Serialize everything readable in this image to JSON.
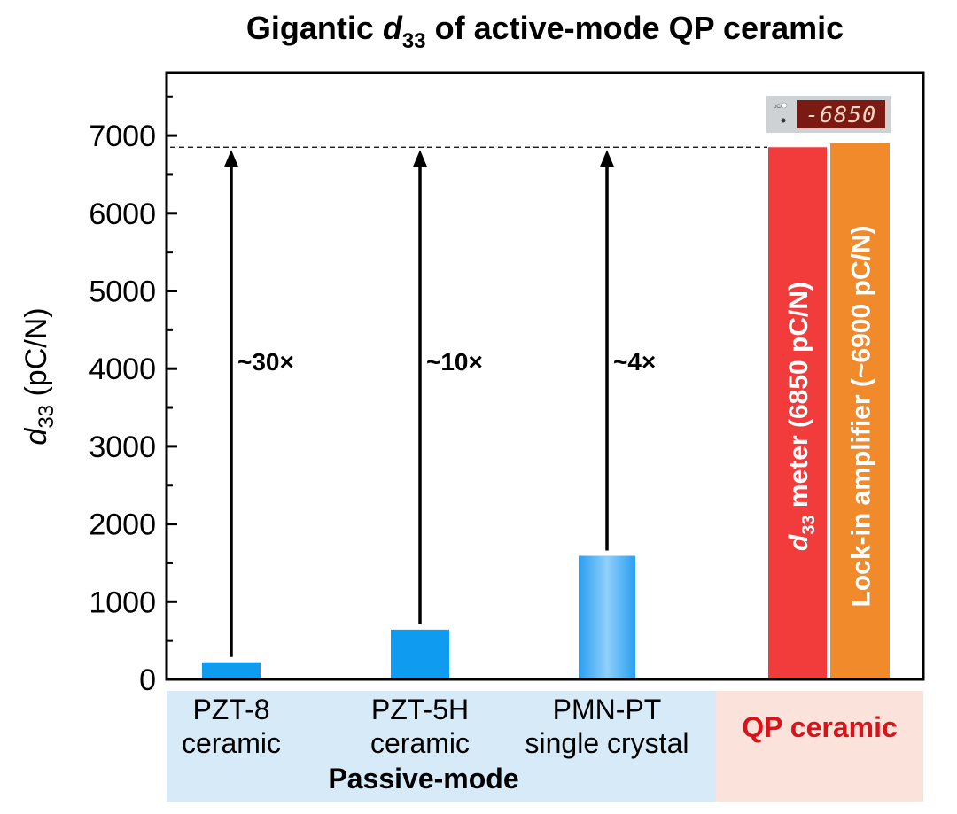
{
  "chart_data": {
    "type": "bar",
    "title": "Gigantic d33 of active-mode QP ceramic",
    "title_parts": {
      "pre": "Gigantic ",
      "italic": "d",
      "sub": "33",
      "post": " of active-mode QP ceramic"
    },
    "ylabel": "d33 (pC/N)",
    "ylabel_parts": {
      "italic": "d",
      "sub": "33",
      "post": " (pC/N)"
    },
    "ylim": [
      0,
      7800
    ],
    "yticks": [
      0,
      1000,
      2000,
      3000,
      4000,
      5000,
      6000,
      7000
    ],
    "yticks_labels": [
      "0",
      "1000",
      "2000",
      "3000",
      "4000",
      "5000",
      "6000",
      "7000"
    ],
    "reference_line": {
      "value": 6850,
      "style": "dashed"
    },
    "groups": [
      {
        "name": "Passive-mode",
        "color": "#d6ebf7"
      },
      {
        "name": "QP ceramic",
        "color": "#fbe3dc",
        "text_color": "#d7141a"
      }
    ],
    "categories": [
      {
        "line1": "PZT-8",
        "line2": "ceramic",
        "value": 220,
        "ratio_label": "~30×",
        "color": "#0f9cf0",
        "group": "Passive-mode"
      },
      {
        "line1": "PZT-5H",
        "line2": "ceramic",
        "value": 640,
        "ratio_label": "~10×",
        "color": "#0f9cf0",
        "group": "Passive-mode"
      },
      {
        "line1": "PMN-PT",
        "line2": "single crystal",
        "value": 1590,
        "ratio_label": "~4×",
        "color": "#3aa6f2",
        "group": "Passive-mode"
      }
    ],
    "active_bars": [
      {
        "label_italic": "d",
        "label_sub": "33",
        "label_post": " meter (6850 pC/N)",
        "value": 6850,
        "color": "#f23b3b"
      },
      {
        "label": "Lock-in amplifier (~6900 pC/N)",
        "value": 6900,
        "color": "#f08a2a"
      }
    ],
    "meter_display": {
      "reading": "-6850",
      "panel_label": "pC/N",
      "background": "#cfd2d4",
      "screen_color": "#7a1a12",
      "digit_color": "#f7d7c6"
    },
    "grid": false
  }
}
